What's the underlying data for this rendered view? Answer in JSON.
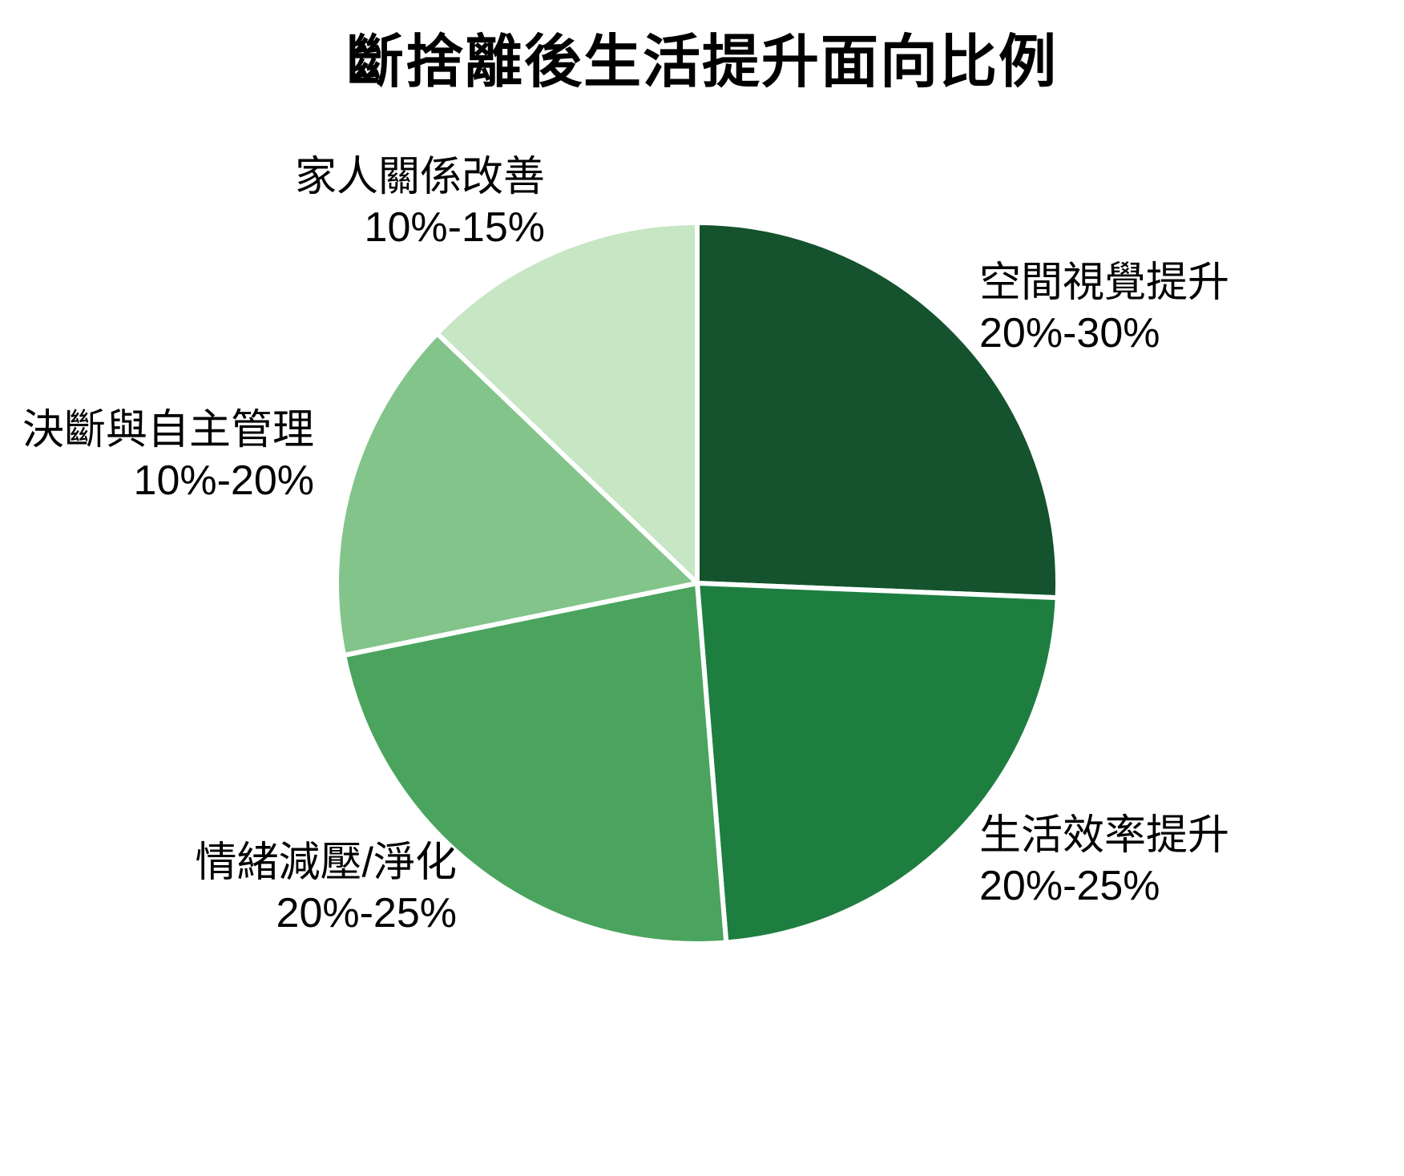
{
  "page": {
    "background_color": "#ffffff",
    "text_color": "#000000"
  },
  "chart_data": {
    "type": "pie",
    "title": "斷捨離後生活提升面向比例",
    "start_angle_deg": -90,
    "direction": "clockwise",
    "legend_position": "none",
    "labels_position": "outside",
    "stroke_color": "#ffffff",
    "stroke_width": 6,
    "slices": [
      {
        "label": "空間視覺提升",
        "range_label": "20%-30%",
        "value_min_pct": 20,
        "value_max_pct": 30,
        "value_mid_pct": 25,
        "color": "#14532d"
      },
      {
        "label": "生活效率提升",
        "range_label": "20%-25%",
        "value_min_pct": 20,
        "value_max_pct": 25,
        "value_mid_pct": 22.5,
        "color": "#1e7e40"
      },
      {
        "label": "情緒減壓/淨化",
        "range_label": "20%-25%",
        "value_min_pct": 20,
        "value_max_pct": 25,
        "value_mid_pct": 22.5,
        "color": "#4aa45e"
      },
      {
        "label": "決斷與自主管理",
        "range_label": "10%-20%",
        "value_min_pct": 10,
        "value_max_pct": 20,
        "value_mid_pct": 15,
        "color": "#82c48a"
      },
      {
        "label": "家人關係改善",
        "range_label": "10%-15%",
        "value_min_pct": 10,
        "value_max_pct": 15,
        "value_mid_pct": 12.5,
        "color": "#c6e6c4"
      }
    ]
  }
}
